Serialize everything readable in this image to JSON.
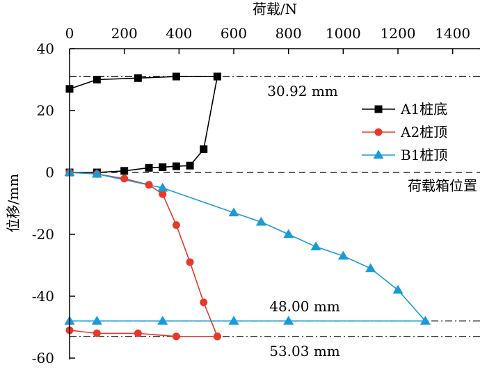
{
  "chart_data": {
    "type": "line",
    "xlabel": "荷载/N",
    "ylabel": "位移/mm",
    "x_axis_position": "top",
    "xlim": [
      0,
      1500
    ],
    "ylim": [
      -60,
      40
    ],
    "xticks": [
      0,
      200,
      400,
      600,
      800,
      1000,
      1200,
      1400
    ],
    "yticks": [
      -60,
      -40,
      -20,
      0,
      20,
      40
    ],
    "grid": false,
    "legend_position": "right",
    "series": [
      {
        "name": "A1桩底",
        "color": "#000000",
        "marker": "square",
        "x": [
          0,
          100,
          200,
          290,
          340,
          390,
          440,
          490,
          540,
          540,
          390,
          250,
          100,
          0
        ],
        "y": [
          0,
          0,
          0.5,
          1.5,
          1.7,
          2,
          2.2,
          7.5,
          31,
          31,
          31,
          30.5,
          30,
          27
        ]
      },
      {
        "name": "A2桩顶",
        "color": "#e8382a",
        "marker": "circle",
        "x": [
          0,
          100,
          200,
          290,
          340,
          390,
          440,
          490,
          540,
          540,
          390,
          250,
          100,
          0
        ],
        "y": [
          0,
          -0.5,
          -2,
          -4,
          -7,
          -17,
          -29,
          -42,
          -53,
          -53,
          -53,
          -52,
          -52,
          -51
        ]
      },
      {
        "name": "B1桩顶",
        "color": "#1a9ad6",
        "marker": "triangle",
        "x": [
          0,
          100,
          340,
          600,
          700,
          800,
          900,
          1000,
          1100,
          1200,
          1300,
          800,
          600,
          340,
          100,
          0
        ],
        "y": [
          0,
          -0.5,
          -5,
          -13,
          -16,
          -20,
          -24,
          -27,
          -31,
          -38,
          -48,
          -48,
          -48,
          -48,
          -48,
          -48
        ]
      }
    ],
    "reference_lines": [
      {
        "y": 31,
        "style": "dashdot",
        "label": "30.92 mm"
      },
      {
        "y": -48,
        "style": "dashdot",
        "label": "48.00 mm"
      },
      {
        "y": -53,
        "style": "dashdot",
        "label": "53.03 mm"
      },
      {
        "y": 0,
        "style": "dashed",
        "label": "荷载箱位置"
      }
    ]
  }
}
